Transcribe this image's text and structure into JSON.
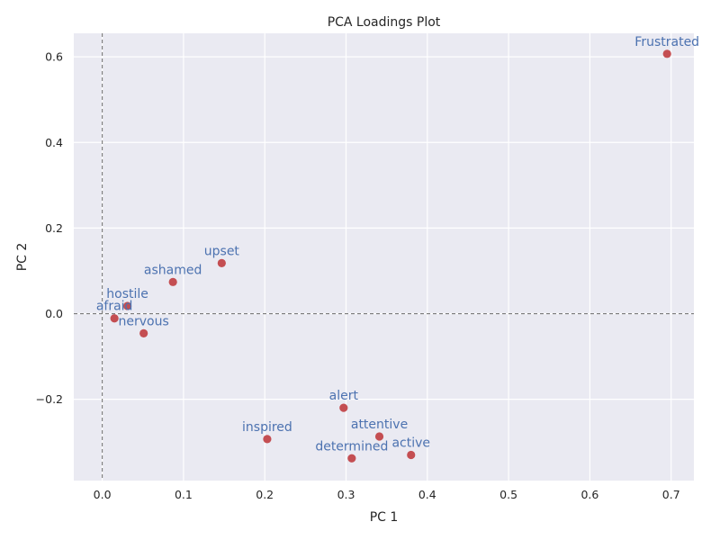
{
  "chart_data": {
    "type": "scatter",
    "title": "PCA Loadings Plot",
    "xlabel": "PC 1",
    "ylabel": "PC 2",
    "xlim": [
      -0.035,
      0.728
    ],
    "ylim": [
      -0.39,
      0.655
    ],
    "xticks": [
      0.0,
      0.1,
      0.2,
      0.3,
      0.4,
      0.5,
      0.6,
      0.7
    ],
    "xtick_labels": [
      "0.0",
      "0.1",
      "0.2",
      "0.3",
      "0.4",
      "0.5",
      "0.6",
      "0.7"
    ],
    "yticks": [
      -0.2,
      0.0,
      0.2,
      0.4,
      0.6
    ],
    "ytick_labels": [
      "−0.2",
      "0.0",
      "0.2",
      "0.4",
      "0.6"
    ],
    "grid": true,
    "reference_lines": {
      "x": 0,
      "y": 0,
      "style": "dashed"
    },
    "point_color": "#c44e52",
    "label_color": "#4c72b0",
    "points": [
      {
        "label": "Frustrated",
        "x": 0.695,
        "y": 0.607
      },
      {
        "label": "upset",
        "x": 0.147,
        "y": 0.118
      },
      {
        "label": "ashamed",
        "x": 0.087,
        "y": 0.074
      },
      {
        "label": "hostile",
        "x": 0.031,
        "y": 0.018
      },
      {
        "label": "afraid",
        "x": 0.015,
        "y": -0.011
      },
      {
        "label": "nervous",
        "x": 0.051,
        "y": -0.046
      },
      {
        "label": "alert",
        "x": 0.297,
        "y": -0.22
      },
      {
        "label": "inspired",
        "x": 0.203,
        "y": -0.293
      },
      {
        "label": "attentive",
        "x": 0.341,
        "y": -0.287
      },
      {
        "label": "determined",
        "x": 0.307,
        "y": -0.338
      },
      {
        "label": "active",
        "x": 0.38,
        "y": -0.33
      }
    ]
  }
}
